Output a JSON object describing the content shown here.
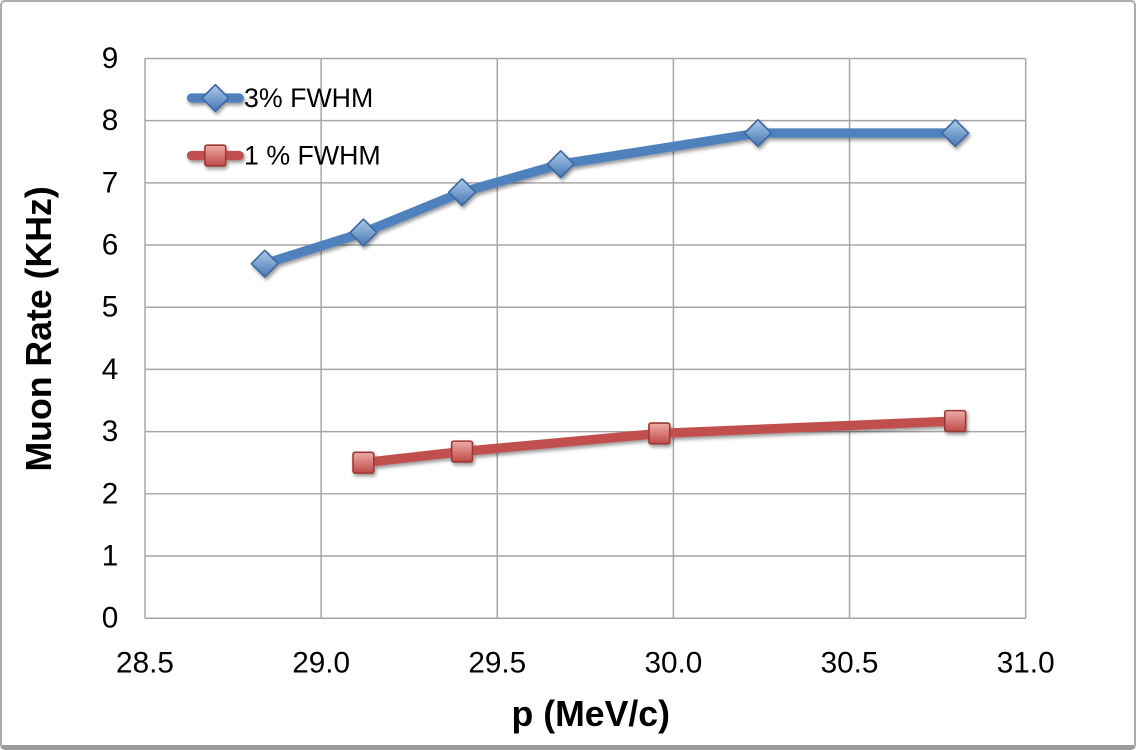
{
  "frame": {
    "background": "#FFFFFF",
    "border_color": "#ABABAB"
  },
  "chart_data": {
    "type": "line",
    "title": "",
    "xlabel": "p (MeV/c)",
    "ylabel": "Muon Rate (KHz)",
    "xlim": [
      28.5,
      31.0
    ],
    "ylim": [
      0,
      9
    ],
    "grid": true,
    "gridline_color": "#A6A6A6",
    "text_color": "#000000",
    "xticks": [
      {
        "v": 28.5,
        "label": "28.5"
      },
      {
        "v": 29.0,
        "label": "29.0"
      },
      {
        "v": 29.5,
        "label": "29.5"
      },
      {
        "v": 30.0,
        "label": "30.0"
      },
      {
        "v": 30.5,
        "label": "30.5"
      },
      {
        "v": 31.0,
        "label": "31.0"
      }
    ],
    "yticks": [
      {
        "v": 0,
        "label": "0"
      },
      {
        "v": 1,
        "label": "1"
      },
      {
        "v": 2,
        "label": "2"
      },
      {
        "v": 3,
        "label": "3"
      },
      {
        "v": 4,
        "label": "4"
      },
      {
        "v": 5,
        "label": "5"
      },
      {
        "v": 6,
        "label": "6"
      },
      {
        "v": 7,
        "label": "7"
      },
      {
        "v": 8,
        "label": "8"
      },
      {
        "v": 9,
        "label": "9"
      }
    ],
    "legend": {
      "position": "inside-top-left",
      "items": [
        "3% FWHM",
        "1 % FWHM"
      ]
    },
    "series": [
      {
        "name": "3% FWHM",
        "marker": "diamond",
        "color": "#4F81BD",
        "marker_gradient": [
          "#AECBEC",
          "#4677B2"
        ],
        "marker_stroke": "#3A66A0",
        "points": [
          [
            28.84,
            5.7
          ],
          [
            29.12,
            6.2
          ],
          [
            29.4,
            6.85
          ],
          [
            29.68,
            7.3
          ],
          [
            30.24,
            7.8
          ],
          [
            30.8,
            7.8
          ]
        ]
      },
      {
        "name": "1 % FWHM",
        "marker": "square",
        "color": "#C0504D",
        "marker_gradient": [
          "#EFACA9",
          "#BE4945"
        ],
        "marker_stroke": "#9C3734",
        "points": [
          [
            29.12,
            2.5
          ],
          [
            29.4,
            2.68
          ],
          [
            29.96,
            2.97
          ],
          [
            30.8,
            3.17
          ]
        ]
      }
    ]
  }
}
